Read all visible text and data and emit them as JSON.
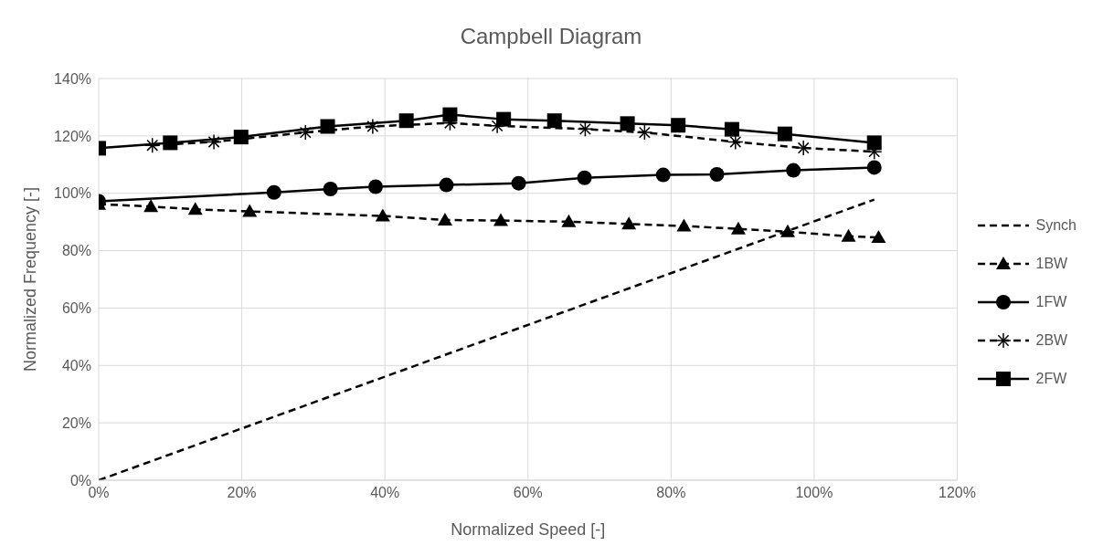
{
  "chart_data": {
    "type": "line",
    "title": "Campbell Diagram",
    "xlabel": "Normalized Speed [-]",
    "ylabel": "Normalized Frequency [-]",
    "xlim": [
      0,
      120
    ],
    "xticks": [
      {
        "value": 0,
        "label": "0%"
      },
      {
        "value": 20,
        "label": "20%"
      },
      {
        "value": 40,
        "label": "40%"
      },
      {
        "value": 60,
        "label": "60%"
      },
      {
        "value": 80,
        "label": "80%"
      },
      {
        "value": 100,
        "label": "100%"
      },
      {
        "value": 120,
        "label": "120%"
      }
    ],
    "ylim": [
      0,
      140
    ],
    "yticks": [
      {
        "value": 0,
        "label": "0%"
      },
      {
        "value": 20,
        "label": "20%"
      },
      {
        "value": 40,
        "label": "40%"
      },
      {
        "value": 60,
        "label": "60%"
      },
      {
        "value": 80,
        "label": "80%"
      },
      {
        "value": 100,
        "label": "100%"
      },
      {
        "value": 120,
        "label": "120%"
      },
      {
        "value": 140,
        "label": "140%"
      }
    ],
    "grid": true,
    "legend": "right",
    "series": [
      {
        "name": "Synch",
        "color": "#000000",
        "line_style": "dashed",
        "marker": "none",
        "x": [
          0,
          108.4
        ],
        "values": [
          0,
          97.8
        ]
      },
      {
        "name": "1BW",
        "color": "#000000",
        "line_style": "dashed",
        "marker": "triangle",
        "x": [
          0,
          7.3,
          13.5,
          21.1,
          39.7,
          48.4,
          56.2,
          65.7,
          74.1,
          81.8,
          89.4,
          96.3,
          104.8,
          109.0
        ],
        "values": [
          96.2,
          95.4,
          94.4,
          93.7,
          92.1,
          90.7,
          90.5,
          90.1,
          89.3,
          88.6,
          87.6,
          86.6,
          85.0,
          84.6
        ]
      },
      {
        "name": "1FW",
        "color": "#000000",
        "line_style": "solid",
        "marker": "circle",
        "x": [
          0,
          24.5,
          32.4,
          38.7,
          48.6,
          58.7,
          67.9,
          78.9,
          86.4,
          97.1,
          108.4
        ],
        "values": [
          97.2,
          100.3,
          101.5,
          102.3,
          102.9,
          103.5,
          105.4,
          106.4,
          106.6,
          108.0,
          109.0
        ]
      },
      {
        "name": "2BW",
        "color": "#000000",
        "line_style": "dashed",
        "marker": "cross",
        "x": [
          7.5,
          16.1,
          28.9,
          38.3,
          49.1,
          55.7,
          68.0,
          76.3,
          89.0,
          98.5,
          108.4
        ],
        "values": [
          116.7,
          117.9,
          121.2,
          123.3,
          124.5,
          123.5,
          122.4,
          121.2,
          117.9,
          115.8,
          114.5
        ]
      },
      {
        "name": "2FW",
        "color": "#000000",
        "line_style": "solid",
        "marker": "square",
        "x": [
          0,
          10.0,
          19.9,
          32.0,
          43.0,
          49.1,
          56.6,
          63.7,
          73.9,
          81.0,
          88.5,
          95.9,
          108.4
        ],
        "values": [
          115.7,
          117.6,
          119.6,
          123.3,
          125.3,
          127.4,
          125.8,
          125.3,
          124.3,
          123.7,
          122.3,
          120.7,
          117.6
        ]
      }
    ]
  }
}
